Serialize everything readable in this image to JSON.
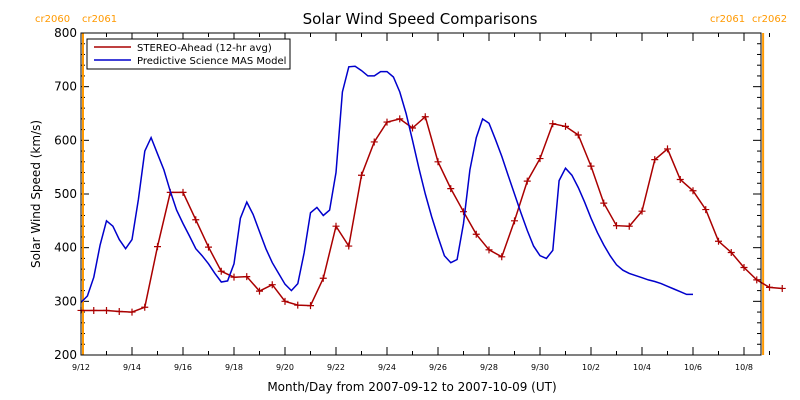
{
  "chart_data": {
    "type": "line",
    "title": "Solar Wind Speed Comparisons",
    "xlabel": "Month/Day from 2007-09-12 to 2007-10-09 (UT)",
    "ylabel": "Solar Wind Speed (km/s)",
    "xlim": [
      "2007-09-12",
      "2007-10-09"
    ],
    "ylim": [
      200,
      800
    ],
    "yticks": [
      200,
      300,
      400,
      500,
      600,
      700,
      800
    ],
    "x_tick_labels": [
      "9/12",
      "9/14",
      "9/16",
      "9/18",
      "9/20",
      "9/22",
      "9/24",
      "9/26",
      "9/28",
      "9/30",
      "10/2",
      "10/4",
      "10/6",
      "10/8"
    ],
    "x_tick_dates": [
      "2007-09-12",
      "2007-09-14",
      "2007-09-16",
      "2007-09-18",
      "2007-09-20",
      "2007-09-22",
      "2007-09-24",
      "2007-09-26",
      "2007-09-28",
      "2007-09-30",
      "2007-10-02",
      "2007-10-04",
      "2007-10-06",
      "2007-10-08"
    ],
    "legend_position": "top-left",
    "grid": false,
    "carrington_markers": [
      {
        "date": "2007-09-12T00:00",
        "left_label": "cr2060",
        "right_label": "cr2061",
        "color": "#ff9900"
      },
      {
        "date": "2007-10-08T18:00",
        "left_label": "cr2061",
        "right_label": "cr2062",
        "color": "#ff9900"
      }
    ],
    "series": [
      {
        "name": "STEREO-Ahead (12-hr avg)",
        "color": "#aa0000",
        "marker": "plus",
        "points": [
          [
            "2007-09-12T00:00",
            283
          ],
          [
            "2007-09-12T12:00",
            283
          ],
          [
            "2007-09-13T00:00",
            283
          ],
          [
            "2007-09-13T12:00",
            281
          ],
          [
            "2007-09-14T00:00",
            280
          ],
          [
            "2007-09-14T12:00",
            289
          ],
          [
            "2007-09-15T00:00",
            402
          ],
          [
            "2007-09-15T12:00",
            503
          ],
          [
            "2007-09-16T00:00",
            503
          ],
          [
            "2007-09-16T12:00",
            452
          ],
          [
            "2007-09-17T00:00",
            401
          ],
          [
            "2007-09-17T12:00",
            356
          ],
          [
            "2007-09-18T00:00",
            345
          ],
          [
            "2007-09-18T12:00",
            346
          ],
          [
            "2007-09-19T00:00",
            319
          ],
          [
            "2007-09-19T12:00",
            331
          ],
          [
            "2007-09-20T00:00",
            300
          ],
          [
            "2007-09-20T12:00",
            293
          ],
          [
            "2007-09-21T00:00",
            292
          ],
          [
            "2007-09-21T12:00",
            343
          ],
          [
            "2007-09-22T00:00",
            440
          ],
          [
            "2007-09-22T12:00",
            403
          ],
          [
            "2007-09-23T00:00",
            535
          ],
          [
            "2007-09-23T12:00",
            597
          ],
          [
            "2007-09-24T00:00",
            634
          ],
          [
            "2007-09-24T12:00",
            640
          ],
          [
            "2007-09-25T00:00",
            623
          ],
          [
            "2007-09-25T12:00",
            644
          ],
          [
            "2007-09-26T00:00",
            560
          ],
          [
            "2007-09-26T12:00",
            510
          ],
          [
            "2007-09-27T00:00",
            467
          ],
          [
            "2007-09-27T12:00",
            425
          ],
          [
            "2007-09-28T00:00",
            396
          ],
          [
            "2007-09-28T12:00",
            383
          ],
          [
            "2007-09-29T00:00",
            450
          ],
          [
            "2007-09-29T12:00",
            524
          ],
          [
            "2007-09-30T00:00",
            566
          ],
          [
            "2007-09-30T12:00",
            631
          ],
          [
            "2007-10-01T00:00",
            626
          ],
          [
            "2007-10-01T12:00",
            610
          ],
          [
            "2007-10-02T00:00",
            552
          ],
          [
            "2007-10-02T12:00",
            483
          ],
          [
            "2007-10-03T00:00",
            441
          ],
          [
            "2007-10-03T12:00",
            440
          ],
          [
            "2007-10-04T00:00",
            468
          ],
          [
            "2007-10-04T12:00",
            564
          ],
          [
            "2007-10-05T00:00",
            584
          ],
          [
            "2007-10-05T12:00",
            527
          ],
          [
            "2007-10-06T00:00",
            506
          ],
          [
            "2007-10-06T12:00",
            471
          ],
          [
            "2007-10-07T00:00",
            412
          ],
          [
            "2007-10-07T12:00",
            391
          ],
          [
            "2007-10-08T00:00",
            363
          ],
          [
            "2007-10-08T12:00",
            340
          ],
          [
            "2007-10-09T00:00",
            326
          ],
          [
            "2007-10-09T12:00",
            324
          ]
        ]
      },
      {
        "name": "Predictive Science MAS Model",
        "color": "#0000cc",
        "marker": "none",
        "points": [
          [
            "2007-09-12T00:00",
            298
          ],
          [
            "2007-09-12T06:00",
            310
          ],
          [
            "2007-09-12T12:00",
            345
          ],
          [
            "2007-09-12T18:00",
            405
          ],
          [
            "2007-09-13T00:00",
            450
          ],
          [
            "2007-09-13T06:00",
            440
          ],
          [
            "2007-09-13T12:00",
            415
          ],
          [
            "2007-09-13T18:00",
            398
          ],
          [
            "2007-09-14T00:00",
            415
          ],
          [
            "2007-09-14T06:00",
            490
          ],
          [
            "2007-09-14T12:00",
            580
          ],
          [
            "2007-09-14T18:00",
            605
          ],
          [
            "2007-09-15T00:00",
            575
          ],
          [
            "2007-09-15T06:00",
            545
          ],
          [
            "2007-09-15T12:00",
            505
          ],
          [
            "2007-09-15T18:00",
            470
          ],
          [
            "2007-09-16T00:00",
            445
          ],
          [
            "2007-09-16T06:00",
            422
          ],
          [
            "2007-09-16T12:00",
            398
          ],
          [
            "2007-09-16T18:00",
            385
          ],
          [
            "2007-09-17T00:00",
            370
          ],
          [
            "2007-09-17T06:00",
            352
          ],
          [
            "2007-09-17T12:00",
            336
          ],
          [
            "2007-09-17T18:00",
            338
          ],
          [
            "2007-09-18T00:00",
            370
          ],
          [
            "2007-09-18T06:00",
            455
          ],
          [
            "2007-09-18T12:00",
            485
          ],
          [
            "2007-09-18T18:00",
            462
          ],
          [
            "2007-09-19T00:00",
            430
          ],
          [
            "2007-09-19T06:00",
            398
          ],
          [
            "2007-09-19T12:00",
            372
          ],
          [
            "2007-09-19T18:00",
            352
          ],
          [
            "2007-09-20T00:00",
            332
          ],
          [
            "2007-09-20T06:00",
            320
          ],
          [
            "2007-09-20T12:00",
            333
          ],
          [
            "2007-09-20T18:00",
            390
          ],
          [
            "2007-09-21T00:00",
            465
          ],
          [
            "2007-09-21T06:00",
            475
          ],
          [
            "2007-09-21T12:00",
            460
          ],
          [
            "2007-09-21T18:00",
            470
          ],
          [
            "2007-09-22T00:00",
            540
          ],
          [
            "2007-09-22T06:00",
            690
          ],
          [
            "2007-09-22T12:00",
            737
          ],
          [
            "2007-09-22T18:00",
            738
          ],
          [
            "2007-09-23T00:00",
            730
          ],
          [
            "2007-09-23T06:00",
            720
          ],
          [
            "2007-09-23T12:00",
            720
          ],
          [
            "2007-09-23T18:00",
            728
          ],
          [
            "2007-09-24T00:00",
            728
          ],
          [
            "2007-09-24T06:00",
            718
          ],
          [
            "2007-09-24T12:00",
            690
          ],
          [
            "2007-09-24T18:00",
            650
          ],
          [
            "2007-09-25T00:00",
            600
          ],
          [
            "2007-09-25T06:00",
            548
          ],
          [
            "2007-09-25T12:00",
            500
          ],
          [
            "2007-09-25T18:00",
            458
          ],
          [
            "2007-09-26T00:00",
            420
          ],
          [
            "2007-09-26T06:00",
            385
          ],
          [
            "2007-09-26T12:00",
            372
          ],
          [
            "2007-09-26T18:00",
            378
          ],
          [
            "2007-09-27T00:00",
            445
          ],
          [
            "2007-09-27T06:00",
            545
          ],
          [
            "2007-09-27T12:00",
            605
          ],
          [
            "2007-09-27T18:00",
            640
          ],
          [
            "2007-09-28T00:00",
            632
          ],
          [
            "2007-09-28T06:00",
            602
          ],
          [
            "2007-09-28T12:00",
            570
          ],
          [
            "2007-09-28T18:00",
            535
          ],
          [
            "2007-09-29T00:00",
            500
          ],
          [
            "2007-09-29T06:00",
            465
          ],
          [
            "2007-09-29T12:00",
            432
          ],
          [
            "2007-09-29T18:00",
            403
          ],
          [
            "2007-09-30T00:00",
            385
          ],
          [
            "2007-09-30T06:00",
            380
          ],
          [
            "2007-09-30T12:00",
            395
          ],
          [
            "2007-09-30T18:00",
            525
          ],
          [
            "2007-10-01T00:00",
            548
          ],
          [
            "2007-10-01T06:00",
            535
          ],
          [
            "2007-10-01T12:00",
            512
          ],
          [
            "2007-10-01T18:00",
            485
          ],
          [
            "2007-10-02T00:00",
            455
          ],
          [
            "2007-10-02T06:00",
            428
          ],
          [
            "2007-10-02T12:00",
            405
          ],
          [
            "2007-10-02T18:00",
            385
          ],
          [
            "2007-10-03T00:00",
            368
          ],
          [
            "2007-10-03T06:00",
            358
          ],
          [
            "2007-10-03T12:00",
            352
          ],
          [
            "2007-10-03T18:00",
            348
          ],
          [
            "2007-10-04T00:00",
            344
          ],
          [
            "2007-10-04T06:00",
            340
          ],
          [
            "2007-10-04T12:00",
            337
          ],
          [
            "2007-10-04T18:00",
            333
          ],
          [
            "2007-10-05T00:00",
            328
          ],
          [
            "2007-10-05T06:00",
            323
          ],
          [
            "2007-10-05T12:00",
            318
          ],
          [
            "2007-10-05T18:00",
            313
          ],
          [
            "2007-10-06T00:00",
            313
          ]
        ]
      }
    ]
  }
}
